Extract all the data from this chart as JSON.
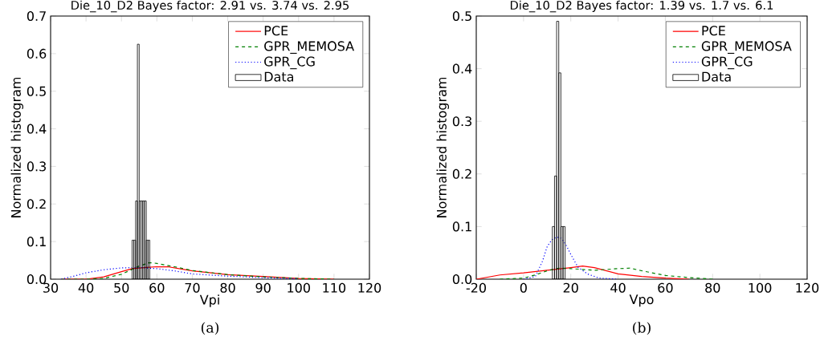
{
  "chart_data": [
    {
      "type": "histogram",
      "title": "Die_10_D2 Bayes factor: 2.91 vs. 3.74 vs. 2.95",
      "xlabel": "Vpi",
      "ylabel": "Normalized histogram",
      "xlim": [
        30,
        120
      ],
      "ylim": [
        0,
        0.7
      ],
      "xticks": [
        30,
        40,
        50,
        60,
        70,
        80,
        90,
        100,
        110,
        120
      ],
      "yticks": [
        {
          "value": 0,
          "label": "0.0"
        },
        {
          "value": 0.1,
          "label": "0.1"
        },
        {
          "value": 0.2,
          "label": "0.2"
        },
        {
          "value": 0.3,
          "label": "0.3"
        },
        {
          "value": 0.4,
          "label": "0.4"
        },
        {
          "value": 0.5,
          "label": "0.5"
        },
        {
          "value": 0.6,
          "label": "0.6"
        },
        {
          "value": 0.7,
          "label": "0.7"
        }
      ],
      "legend": "top right",
      "annotations": [
        "(a)"
      ],
      "series": [
        {
          "type": "line",
          "name": "PCE",
          "color": "#ff0000",
          "line_style": "solid",
          "x": [
            33,
            40,
            45,
            50,
            53,
            57,
            60,
            63,
            70,
            80,
            90,
            100,
            110
          ],
          "values": [
            0,
            0,
            0.006,
            0.02,
            0.028,
            0.031,
            0.033,
            0.033,
            0.022,
            0.012,
            0.007,
            0.002,
            0
          ]
        },
        {
          "type": "line",
          "name": "GPR_MEMOSA",
          "color": "#008000",
          "line_style": "dashed",
          "x": [
            33,
            40,
            45,
            50,
            55,
            58,
            60,
            65,
            70,
            80,
            90,
            100,
            110
          ],
          "values": [
            0,
            0,
            0.002,
            0.013,
            0.035,
            0.044,
            0.042,
            0.033,
            0.023,
            0.012,
            0.006,
            0.002,
            0
          ]
        },
        {
          "type": "line",
          "name": "GPR_CG",
          "color": "#0000ff",
          "line_style": "dotted",
          "x": [
            33,
            37,
            40,
            45,
            50,
            55,
            60,
            65,
            70,
            80,
            90,
            100
          ],
          "values": [
            0,
            0.009,
            0.017,
            0.025,
            0.03,
            0.031,
            0.028,
            0.022,
            0.014,
            0.008,
            0.004,
            0.001
          ]
        },
        {
          "name": "Data",
          "color": "#000000",
          "bins": [
            53,
            53.5,
            54,
            54.5,
            55,
            55.5,
            56,
            56.5,
            57,
            57.5,
            58
          ],
          "values": [
            0.104,
            0.104,
            0.208,
            0.625,
            0.208,
            0.208,
            0.208,
            0.208,
            0.104,
            0.104
          ]
        }
      ]
    },
    {
      "type": "histogram",
      "title": "Die_10_D2 Bayes factor: 1.39 vs. 1.7 vs. 6.1",
      "xlabel": "Vpo",
      "ylabel": "Normalized histogram",
      "xlim": [
        -20,
        120
      ],
      "ylim": [
        0,
        0.5
      ],
      "xticks": [
        -20,
        0,
        20,
        40,
        60,
        80,
        100,
        120
      ],
      "yticks": [
        {
          "value": 0,
          "label": "0.0"
        },
        {
          "value": 0.1,
          "label": "0.1"
        },
        {
          "value": 0.2,
          "label": "0.2"
        },
        {
          "value": 0.3,
          "label": "0.3"
        },
        {
          "value": 0.4,
          "label": "0.4"
        },
        {
          "value": 0.5,
          "label": "0.5"
        }
      ],
      "legend": "top right",
      "annotations": [
        "(b)"
      ],
      "series": [
        {
          "type": "line",
          "name": "PCE",
          "color": "#ff0000",
          "line_style": "solid",
          "x": [
            -20,
            -10,
            0,
            10,
            20,
            25,
            30,
            40,
            50,
            60,
            70
          ],
          "values": [
            0,
            0.008,
            0.012,
            0.017,
            0.022,
            0.025,
            0.022,
            0.01,
            0.005,
            0.002,
            0
          ]
        },
        {
          "type": "line",
          "name": "GPR_MEMOSA",
          "color": "#008000",
          "line_style": "dashed",
          "x": [
            -10,
            0,
            5,
            10,
            15,
            20,
            30,
            40,
            45,
            50,
            60,
            70,
            80
          ],
          "values": [
            0,
            0.002,
            0.008,
            0.016,
            0.021,
            0.02,
            0.017,
            0.02,
            0.021,
            0.016,
            0.007,
            0.003,
            0
          ]
        },
        {
          "type": "line",
          "name": "GPR_CG",
          "color": "#0000ff",
          "line_style": "dotted",
          "x": [
            0,
            5,
            8,
            10,
            12,
            14,
            16,
            18,
            20,
            23,
            27,
            32,
            40
          ],
          "values": [
            0,
            0.005,
            0.034,
            0.062,
            0.075,
            0.08,
            0.078,
            0.065,
            0.047,
            0.023,
            0.01,
            0.002,
            0
          ]
        },
        {
          "name": "Data",
          "color": "#000000",
          "bins": [
            12.2,
            13.1,
            14.0,
            14.9,
            15.8,
            16.7,
            17.6
          ],
          "values": [
            0.1,
            0.196,
            0.49,
            0.392,
            0.1,
            0.1
          ]
        }
      ]
    }
  ]
}
